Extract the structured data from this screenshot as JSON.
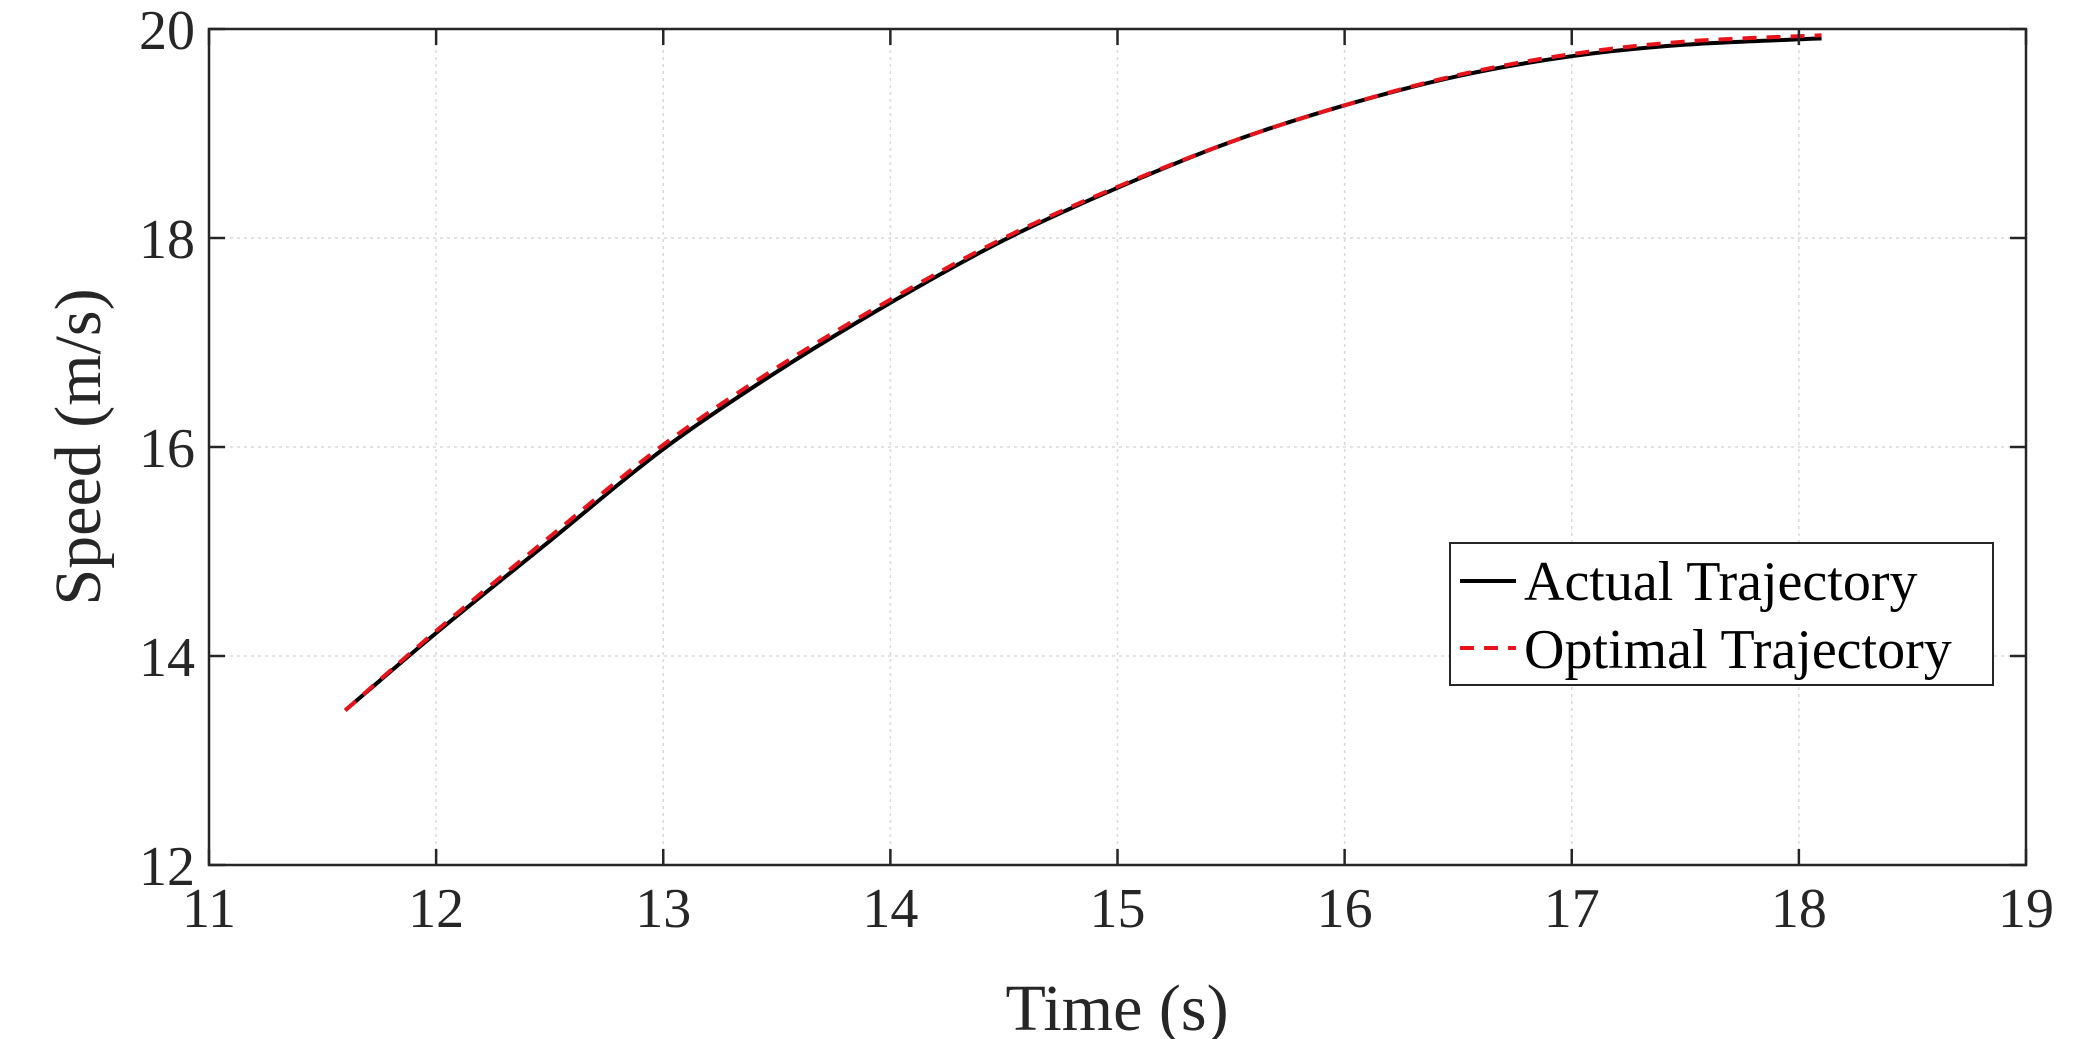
{
  "chart_data": {
    "type": "line",
    "title": "",
    "xlabel": "Time (s)",
    "ylabel": "Speed (m/s)",
    "xlim": [
      11,
      19
    ],
    "ylim": [
      12,
      20
    ],
    "xticks": [
      11,
      12,
      13,
      14,
      15,
      16,
      17,
      18,
      19
    ],
    "yticks": [
      12,
      14,
      16,
      18,
      20
    ],
    "grid": true,
    "legend_position": "lower-right",
    "series": [
      {
        "name": "Actual Trajectory",
        "color": "#000000",
        "style": "solid",
        "x": [
          11.6,
          12.0,
          12.5,
          13.0,
          13.5,
          14.0,
          14.5,
          15.0,
          15.5,
          16.0,
          16.5,
          17.0,
          17.5,
          18.1
        ],
        "y": [
          13.48,
          14.22,
          15.1,
          15.98,
          16.72,
          17.38,
          17.98,
          18.48,
          18.92,
          19.27,
          19.55,
          19.74,
          19.85,
          19.91
        ]
      },
      {
        "name": "Optimal Trajectory",
        "color": "#e8141c",
        "style": "dashed",
        "x": [
          11.6,
          12.0,
          12.5,
          13.0,
          13.5,
          14.0,
          14.5,
          15.0,
          15.5,
          16.0,
          16.5,
          17.0,
          17.5,
          18.1
        ],
        "y": [
          13.48,
          14.24,
          15.14,
          16.02,
          16.76,
          17.41,
          18.0,
          18.49,
          18.92,
          19.27,
          19.56,
          19.76,
          19.88,
          19.94
        ]
      }
    ]
  }
}
